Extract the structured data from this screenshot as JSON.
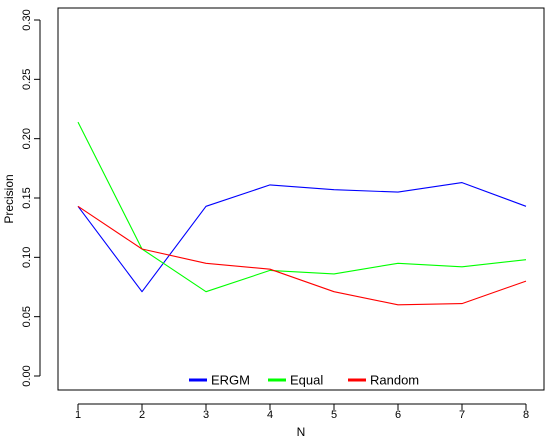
{
  "chart_data": {
    "type": "line",
    "title": "",
    "xlabel": "N",
    "ylabel": "Precision",
    "x": [
      1,
      2,
      3,
      4,
      5,
      6,
      7,
      8
    ],
    "xlim": [
      1,
      8
    ],
    "ylim": [
      0,
      0.3
    ],
    "x_ticks": [
      "1",
      "2",
      "3",
      "4",
      "5",
      "6",
      "7",
      "8"
    ],
    "y_ticks": [
      "0.00",
      "0.05",
      "0.10",
      "0.15",
      "0.20",
      "0.25",
      "0.30"
    ],
    "grid": false,
    "legend_position": "bottom-center",
    "series": [
      {
        "name": "ERGM",
        "color": "#0000ff",
        "values": [
          0.143,
          0.071,
          0.143,
          0.161,
          0.157,
          0.155,
          0.163,
          0.143
        ]
      },
      {
        "name": "Equal",
        "color": "#00ff00",
        "values": [
          0.214,
          0.107,
          0.071,
          0.089,
          0.086,
          0.095,
          0.092,
          0.098
        ]
      },
      {
        "name": "Random",
        "color": "#ff0000",
        "values": [
          0.143,
          0.107,
          0.095,
          0.09,
          0.071,
          0.06,
          0.061,
          0.08
        ]
      }
    ]
  }
}
